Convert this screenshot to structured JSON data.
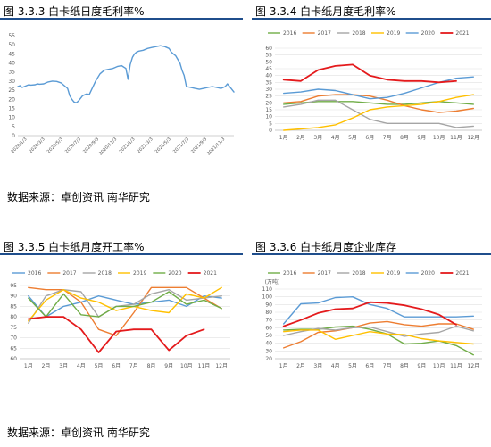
{
  "panels": [
    {
      "title": "图 3.3.3 白卡纸日度毛利率%"
    },
    {
      "title": "图 3.3.4 白卡纸月度毛利率%"
    },
    {
      "title": "图 3.3.5 白卡纸月度开工率%"
    },
    {
      "title": "图 3.3.6 白卡纸月度企业库存"
    }
  ],
  "source_text_top": "数据来源：卓创资讯  南华研究",
  "source_text_bottom": "数据来源：卓创资讯  南华研究",
  "colors": {
    "rule": "#1f4e8c",
    "axis": "#bfbfbf",
    "grid": "#d9d9d9"
  },
  "chart_data": [
    {
      "type": "line",
      "title": "",
      "ylim": [
        0,
        55
      ],
      "yticks": [
        "0",
        "5",
        "10",
        "15",
        "20",
        "25",
        "30",
        "35",
        "40",
        "45",
        "50",
        "55"
      ],
      "categories": [
        "2020/1/3",
        "2020/3/3",
        "2020/5/3",
        "2020/7/3",
        "2020/9/3",
        "2020/11/3",
        "2021/1/3",
        "2021/3/3",
        "2021/5/3",
        "2021/7/3",
        "2021/9/3",
        "2021/11/3"
      ],
      "series": [
        {
          "color": "#5b9bd5",
          "gaps": [
            0.06,
            0.23,
            0.33,
            0.5,
            0.52,
            0.77
          ],
          "x": [
            0,
            0.01,
            0.02,
            0.03,
            0.04,
            0.05,
            0.06,
            0.08,
            0.09,
            0.1,
            0.12,
            0.14,
            0.16,
            0.18,
            0.2,
            0.22,
            0.23,
            0.24,
            0.25,
            0.26,
            0.27,
            0.28,
            0.3,
            0.32,
            0.33,
            0.34,
            0.36,
            0.38,
            0.4,
            0.42,
            0.44,
            0.46,
            0.48,
            0.5,
            0.51,
            0.52,
            0.53,
            0.54,
            0.55,
            0.56,
            0.58,
            0.6,
            0.62,
            0.64,
            0.66,
            0.68,
            0.7,
            0.71,
            0.72,
            0.73,
            0.74,
            0.75,
            0.76,
            0.77,
            0.78,
            0.8,
            0.82,
            0.84,
            0.86,
            0.88,
            0.9,
            0.92,
            0.94,
            0.96,
            0.97,
            0.98,
            0.99,
            1.0
          ],
          "values": [
            27,
            27.5,
            26.5,
            27,
            27.5,
            28,
            27.8,
            28,
            28.5,
            28.3,
            28.5,
            29.5,
            30,
            29.8,
            29,
            27,
            26,
            22,
            20,
            18.5,
            18,
            19,
            22,
            23,
            22.5,
            25,
            30,
            34,
            36,
            36.5,
            37,
            38,
            38.5,
            37,
            31,
            39,
            43,
            45,
            46,
            46.5,
            47,
            48,
            48.5,
            49,
            49.5,
            49,
            48,
            46,
            45,
            44,
            42,
            40,
            36,
            33,
            27,
            26.5,
            26,
            25.5,
            26,
            26.5,
            27,
            26.5,
            26,
            27,
            28.5,
            27,
            25.5,
            24
          ]
        }
      ]
    },
    {
      "type": "line",
      "title": "",
      "categories": [
        "1月",
        "2月",
        "3月",
        "4月",
        "5月",
        "6月",
        "7月",
        "8月",
        "9月",
        "10月",
        "11月",
        "12月"
      ],
      "ylim": [
        0,
        60
      ],
      "yticks": [
        "0",
        "5",
        "10",
        "15",
        "20",
        "25",
        "30",
        "35",
        "40",
        "45",
        "50",
        "55",
        "60"
      ],
      "series": [
        {
          "name": "2016",
          "color": "#70ad47",
          "values": [
            19,
            20,
            21,
            21,
            21,
            20,
            19,
            19,
            20,
            21,
            20,
            19
          ]
        },
        {
          "name": "2017",
          "color": "#ed7d31",
          "values": [
            20,
            21,
            25,
            26,
            26,
            25,
            22,
            18,
            15,
            13,
            14,
            16
          ]
        },
        {
          "name": "2018",
          "color": "#a5a5a5",
          "values": [
            17,
            19,
            22,
            22,
            15,
            8,
            5,
            5,
            5,
            5,
            2,
            3
          ]
        },
        {
          "name": "2019",
          "color": "#ffc000",
          "values": [
            0,
            1,
            2,
            4,
            9,
            15,
            17,
            18,
            19,
            21,
            24,
            26
          ]
        },
        {
          "name": "2020",
          "color": "#5b9bd5",
          "values": [
            27,
            28,
            30,
            29,
            26,
            23,
            24,
            27,
            31,
            35,
            38,
            39
          ]
        },
        {
          "name": "2021",
          "color": "#e41a1c",
          "values": [
            37,
            36,
            44,
            47,
            48,
            40,
            37,
            36,
            36,
            35,
            36,
            null
          ]
        }
      ]
    },
    {
      "type": "line",
      "title": "",
      "categories": [
        "1月",
        "2月",
        "3月",
        "4月",
        "5月",
        "6月",
        "7月",
        "8月",
        "9月",
        "10月",
        "11月",
        "12月"
      ],
      "ylim": [
        60,
        95
      ],
      "yticks": [
        "60",
        "65",
        "70",
        "75",
        "80",
        "85",
        "90",
        "95"
      ],
      "series": [
        {
          "name": "2016",
          "color": "#5b9bd5",
          "values": [
            90,
            80,
            85,
            87,
            90,
            88,
            86,
            87,
            88,
            85,
            90,
            89
          ]
        },
        {
          "name": "2017",
          "color": "#ed7d31",
          "values": [
            94,
            93,
            93,
            87,
            74,
            71,
            82,
            94,
            94,
            94,
            89,
            84
          ]
        },
        {
          "name": "2018",
          "color": "#a5a5a5",
          "values": [
            77,
            90,
            93,
            92,
            80,
            85,
            86,
            91,
            93,
            88,
            89,
            90
          ]
        },
        {
          "name": "2019",
          "color": "#ffc000",
          "values": [
            78,
            88,
            93,
            89,
            87,
            83,
            85,
            83,
            82,
            91,
            89,
            94
          ]
        },
        {
          "name": "2020",
          "color": "#70ad47",
          "values": [
            89,
            80,
            91,
            81,
            80,
            85,
            85,
            87,
            92,
            86,
            88,
            84
          ]
        },
        {
          "name": "2021",
          "color": "#e41a1c",
          "values": [
            79,
            80,
            80,
            74,
            63,
            73,
            74,
            74,
            64,
            71,
            74,
            null
          ]
        }
      ]
    },
    {
      "type": "line",
      "title": "",
      "ylabel": "(万吨)",
      "categories": [
        "1月",
        "2月",
        "3月",
        "4月",
        "5月",
        "6月",
        "7月",
        "8月",
        "9月",
        "10月",
        "11月",
        "12月"
      ],
      "ylim": [
        20,
        110
      ],
      "yticks": [
        "20",
        "30",
        "40",
        "50",
        "60",
        "70",
        "80",
        "90",
        "100",
        "110"
      ],
      "series": [
        {
          "name": "2016",
          "color": "#70ad47",
          "values": [
            57,
            58,
            58,
            61,
            62,
            58,
            52,
            39,
            40,
            43,
            37,
            25
          ]
        },
        {
          "name": "2017",
          "color": "#ed7d31",
          "values": [
            34,
            42,
            54,
            56,
            60,
            66,
            68,
            64,
            62,
            65,
            65,
            58
          ]
        },
        {
          "name": "2018",
          "color": "#a5a5a5",
          "values": [
            50,
            55,
            59,
            57,
            60,
            61,
            55,
            49,
            52,
            54,
            62,
            56
          ]
        },
        {
          "name": "2019",
          "color": "#ffc000",
          "values": [
            55,
            57,
            57,
            45,
            50,
            55,
            52,
            51,
            46,
            43,
            41,
            39
          ]
        },
        {
          "name": "2020",
          "color": "#5b9bd5",
          "values": [
            65,
            91,
            92,
            99,
            100,
            90,
            85,
            74,
            74,
            74,
            74,
            75
          ]
        },
        {
          "name": "2021",
          "color": "#e41a1c",
          "values": [
            62,
            70,
            79,
            84,
            85,
            93,
            92,
            89,
            84,
            77,
            64,
            null
          ]
        }
      ]
    }
  ]
}
